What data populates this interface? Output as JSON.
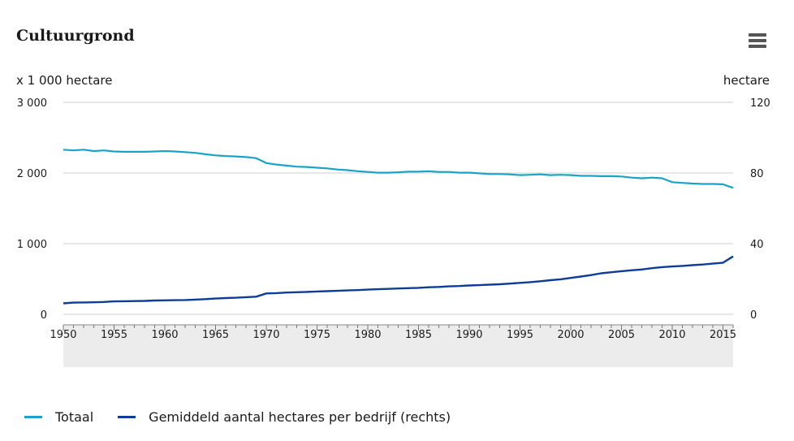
{
  "header": {
    "title": "Cultuurgrond",
    "menu_icon": "hamburger-icon"
  },
  "chart_data": {
    "type": "line",
    "title": "Cultuurgrond",
    "ylabel_left": "x 1 000 hectare",
    "ylabel_right": "hectare",
    "xlim": [
      1950,
      2016
    ],
    "ylim_left": [
      0,
      3000
    ],
    "ylim_right": [
      0,
      120
    ],
    "grid": true,
    "legend_position": "bottom",
    "x_ticks": [
      "1950",
      "1955",
      "1960",
      "1965",
      "1970",
      "1975",
      "1980",
      "1985",
      "1990",
      "1995",
      "2000",
      "2005",
      "2010",
      "2015"
    ],
    "y_ticks_left": [
      "0",
      "1 000",
      "2 000",
      "3 000"
    ],
    "y_ticks_right": [
      "0",
      "40",
      "80",
      "120"
    ],
    "x": [
      1950,
      1951,
      1952,
      1953,
      1954,
      1955,
      1956,
      1957,
      1958,
      1959,
      1960,
      1961,
      1962,
      1963,
      1964,
      1965,
      1966,
      1967,
      1968,
      1969,
      1970,
      1971,
      1972,
      1973,
      1974,
      1975,
      1976,
      1977,
      1978,
      1979,
      1980,
      1981,
      1982,
      1983,
      1984,
      1985,
      1986,
      1987,
      1988,
      1989,
      1990,
      1991,
      1992,
      1993,
      1994,
      1995,
      1996,
      1997,
      1998,
      1999,
      2000,
      2001,
      2002,
      2003,
      2004,
      2005,
      2006,
      2007,
      2008,
      2009,
      2010,
      2011,
      2012,
      2013,
      2014,
      2015,
      2016
    ],
    "series": [
      {
        "name": "Totaal",
        "axis": "left",
        "color": "#1aa3c9",
        "values": [
          2330,
          2320,
          2330,
          2310,
          2320,
          2305,
          2300,
          2300,
          2300,
          2305,
          2310,
          2305,
          2295,
          2285,
          2265,
          2250,
          2240,
          2235,
          2225,
          2210,
          2140,
          2120,
          2105,
          2090,
          2085,
          2075,
          2065,
          2050,
          2040,
          2025,
          2015,
          2005,
          2005,
          2010,
          2020,
          2020,
          2025,
          2015,
          2015,
          2005,
          2005,
          1995,
          1985,
          1985,
          1980,
          1970,
          1975,
          1980,
          1970,
          1975,
          1970,
          1960,
          1960,
          1955,
          1955,
          1950,
          1935,
          1925,
          1935,
          1925,
          1870,
          1860,
          1850,
          1845,
          1845,
          1840,
          1790
        ]
      },
      {
        "name": "Gemiddeld aantal hectares per bedrijf (rechts)",
        "axis": "right",
        "color": "#0d3d99",
        "values": [
          6.2,
          6.6,
          6.7,
          6.8,
          7.0,
          7.3,
          7.4,
          7.5,
          7.6,
          7.8,
          7.9,
          8.0,
          8.1,
          8.3,
          8.6,
          8.9,
          9.2,
          9.4,
          9.7,
          10.0,
          11.8,
          12.0,
          12.3,
          12.5,
          12.7,
          12.9,
          13.1,
          13.3,
          13.5,
          13.7,
          14.0,
          14.2,
          14.4,
          14.6,
          14.8,
          15.0,
          15.3,
          15.5,
          15.8,
          16.0,
          16.3,
          16.5,
          16.8,
          17.0,
          17.4,
          17.8,
          18.2,
          18.7,
          19.3,
          19.8,
          20.6,
          21.4,
          22.2,
          23.2,
          23.8,
          24.4,
          24.9,
          25.4,
          26.1,
          26.7,
          27.1,
          27.4,
          27.8,
          28.2,
          28.7,
          29.2,
          32.8
        ]
      }
    ]
  }
}
